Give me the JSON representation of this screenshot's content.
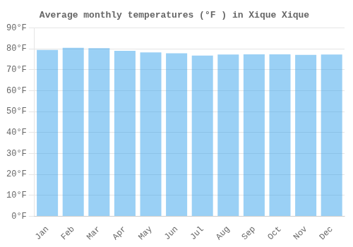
{
  "chart_data": {
    "type": "bar",
    "title": "Average monthly temperatures (°F ) in Xique Xique",
    "categories": [
      "Jan",
      "Feb",
      "Mar",
      "Apr",
      "May",
      "Jun",
      "Jul",
      "Aug",
      "Sep",
      "Oct",
      "Nov",
      "Dec"
    ],
    "values": [
      79.5,
      80.5,
      80.3,
      79.1,
      78.3,
      77.9,
      76.8,
      77.3,
      77.4,
      77.4,
      77.1,
      77.3
    ],
    "ylim": [
      0,
      90
    ],
    "yticks": [
      {
        "value": 0,
        "label": "0°F"
      },
      {
        "value": 10,
        "label": "10°F"
      },
      {
        "value": 20,
        "label": "20°F"
      },
      {
        "value": 30,
        "label": "30°F"
      },
      {
        "value": 40,
        "label": "40°F"
      },
      {
        "value": 50,
        "label": "50°F"
      },
      {
        "value": 60,
        "label": "60°F"
      },
      {
        "value": 70,
        "label": "70°F"
      },
      {
        "value": 80,
        "label": "80°F"
      },
      {
        "value": 90,
        "label": "90°F"
      }
    ],
    "grid": true
  }
}
